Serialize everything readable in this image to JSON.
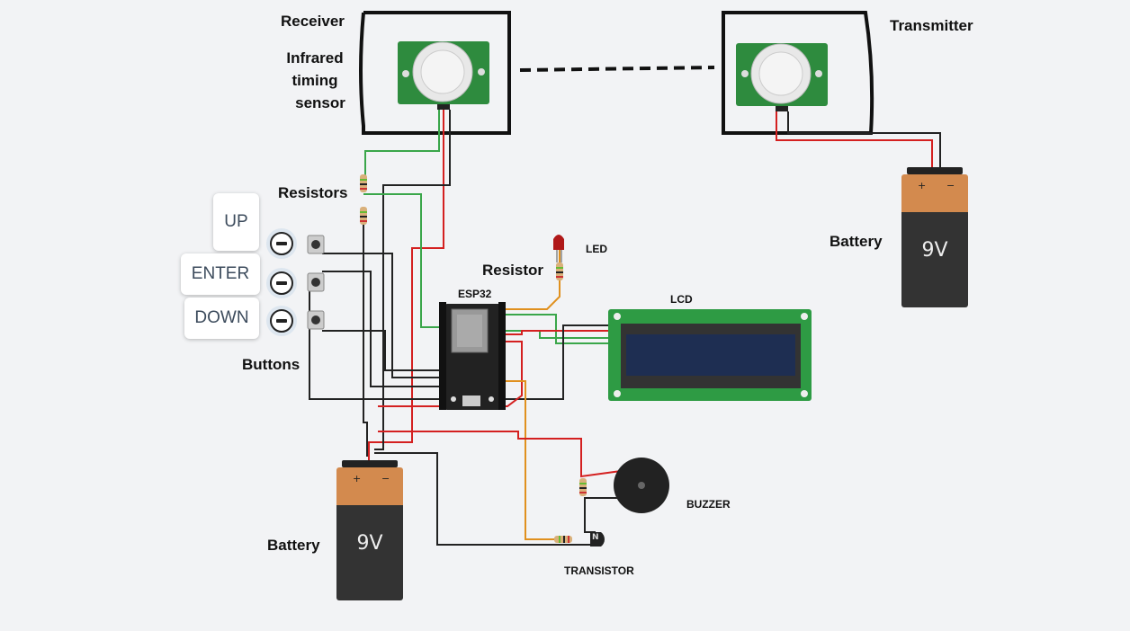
{
  "labels": {
    "receiver": "Receiver",
    "infrared_line1": "Infrared",
    "infrared_line2": "timing",
    "infrared_line3": "sensor",
    "transmitter": "Transmitter",
    "resistors": "Resistors",
    "resistor": "Resistor",
    "led": "LED",
    "esp32": "ESP32",
    "lcd": "LCD",
    "buttons": "Buttons",
    "battery_left": "Battery",
    "battery_right": "Battery",
    "buzzer": "BUZZER",
    "transistor": "TRANSISTOR"
  },
  "buttons": {
    "up": "UP",
    "enter": "ENTER",
    "down": "DOWN"
  },
  "battery": {
    "voltage": "9V",
    "plus": "+",
    "minus": "−"
  },
  "transistor_mark": "N",
  "colors": {
    "board_green": "#2e8b3e",
    "wire_red": "#d42020",
    "wire_green": "#3aa64a",
    "wire_black": "#222222",
    "wire_orange": "#e0901e",
    "lcd_screen": "#1e2e52"
  }
}
